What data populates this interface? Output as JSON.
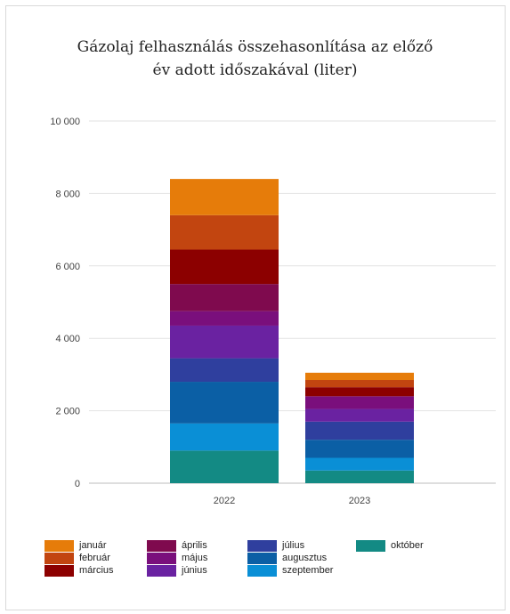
{
  "chart_data": {
    "type": "bar",
    "stacked": true,
    "title": "Gázolaj felhasználás összehasonlítása az előző év adott időszakával (liter)",
    "title_lines": [
      "Gázolaj felhasználás összehasonlítása az előző",
      "év adott időszakával (liter)"
    ],
    "categories": [
      "2022",
      "2023"
    ],
    "ylim": [
      0,
      10000
    ],
    "yticks": [
      0,
      2000,
      4000,
      6000,
      8000,
      10000
    ],
    "ytick_labels": [
      "0",
      "2 000",
      "4 000",
      "6 000",
      "8 000",
      "10 000"
    ],
    "grid": true,
    "legend_position": "bottom",
    "series": [
      {
        "name": "október",
        "color": "#138a84",
        "values": [
          900,
          350
        ]
      },
      {
        "name": "szeptember",
        "color": "#0a8fd6",
        "values": [
          750,
          350
        ]
      },
      {
        "name": "augusztus",
        "color": "#0b5fa5",
        "values": [
          1150,
          500
        ]
      },
      {
        "name": "július",
        "color": "#2f3f9e",
        "values": [
          650,
          500
        ]
      },
      {
        "name": "június",
        "color": "#6a22a1",
        "values": [
          900,
          350
        ]
      },
      {
        "name": "május",
        "color": "#7a0f7c",
        "values": [
          400,
          350
        ]
      },
      {
        "name": "április",
        "color": "#7f0a4e",
        "values": [
          750,
          0
        ]
      },
      {
        "name": "március",
        "color": "#8c0000",
        "values": [
          950,
          250
        ]
      },
      {
        "name": "február",
        "color": "#c24510",
        "values": [
          950,
          200
        ]
      },
      {
        "name": "január",
        "color": "#e67c0a",
        "values": [
          1000,
          200
        ]
      }
    ],
    "legend_order": [
      "január",
      "február",
      "március",
      "április",
      "május",
      "június",
      "július",
      "augusztus",
      "szeptember",
      "október"
    ]
  }
}
